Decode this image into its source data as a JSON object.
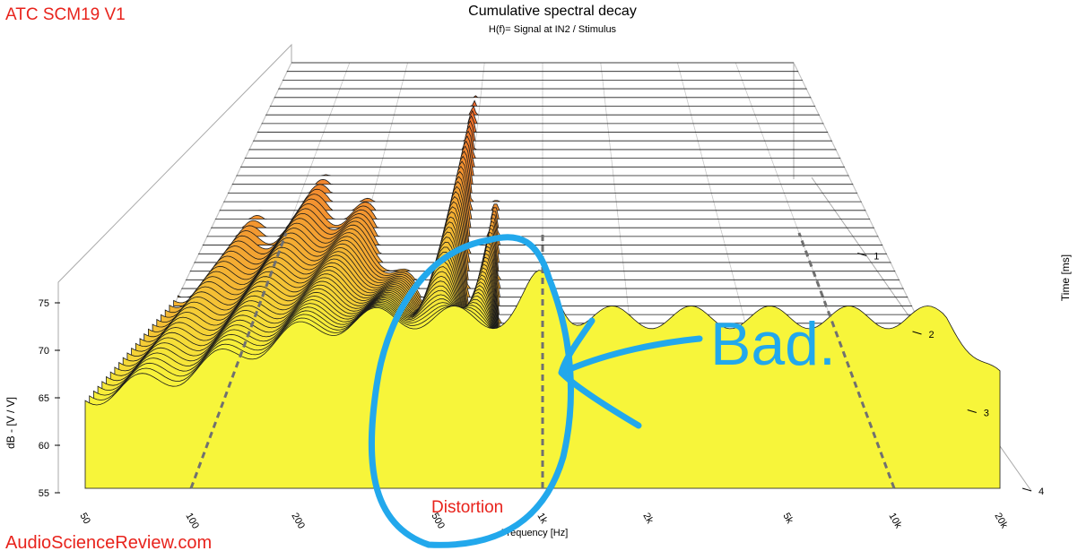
{
  "header": {
    "device_label": "ATC SCM19 V1",
    "title": "Cumulative spectral decay",
    "subtitle": "H(f)= Signal at IN2 / Stimulus"
  },
  "colors": {
    "device_label": "#e8231c",
    "watermark": "#e8231c",
    "annotation_text": "#e8231c",
    "markup_blue": "#22a8ec",
    "slice_front": "#f7f53a",
    "slice_back": "#f05a2a",
    "grid": "#aaaaaa",
    "dashed_marker": "#707070"
  },
  "chart_data": {
    "type": "waterfall",
    "title": "Cumulative spectral decay",
    "subtitle": "H(f)= Signal at IN2 / Stimulus",
    "xlabel": "Frequency [Hz]",
    "ylabel": "dB - [V / V]",
    "zlabel": "Time [ms]",
    "x_scale": "log",
    "xlim": [
      50,
      20000
    ],
    "ylim": [
      55,
      78
    ],
    "zlim": [
      0,
      4
    ],
    "x_ticks": [
      "50",
      "100",
      "200",
      "500",
      "1k",
      "2k",
      "5k",
      "10k",
      "20k"
    ],
    "x_tick_values": [
      50,
      100,
      200,
      500,
      1000,
      2000,
      5000,
      10000,
      20000
    ],
    "y_ticks": [
      "55",
      "60",
      "65",
      "70",
      "75"
    ],
    "y_tick_values": [
      55,
      60,
      65,
      70,
      75
    ],
    "z_ticks": [
      "1",
      "2",
      "3",
      "4"
    ],
    "z_tick_values": [
      1,
      2,
      3,
      4
    ],
    "dashed_markers_hz": [
      100,
      1000,
      10000
    ],
    "slices": {
      "count": 50,
      "first_ms": 0,
      "last_ms": 4
    },
    "grid": true
  },
  "annotations": {
    "bad_label": "Bad.",
    "distortion_label": "Distortion"
  },
  "watermark": "AudioScienceReview.com"
}
